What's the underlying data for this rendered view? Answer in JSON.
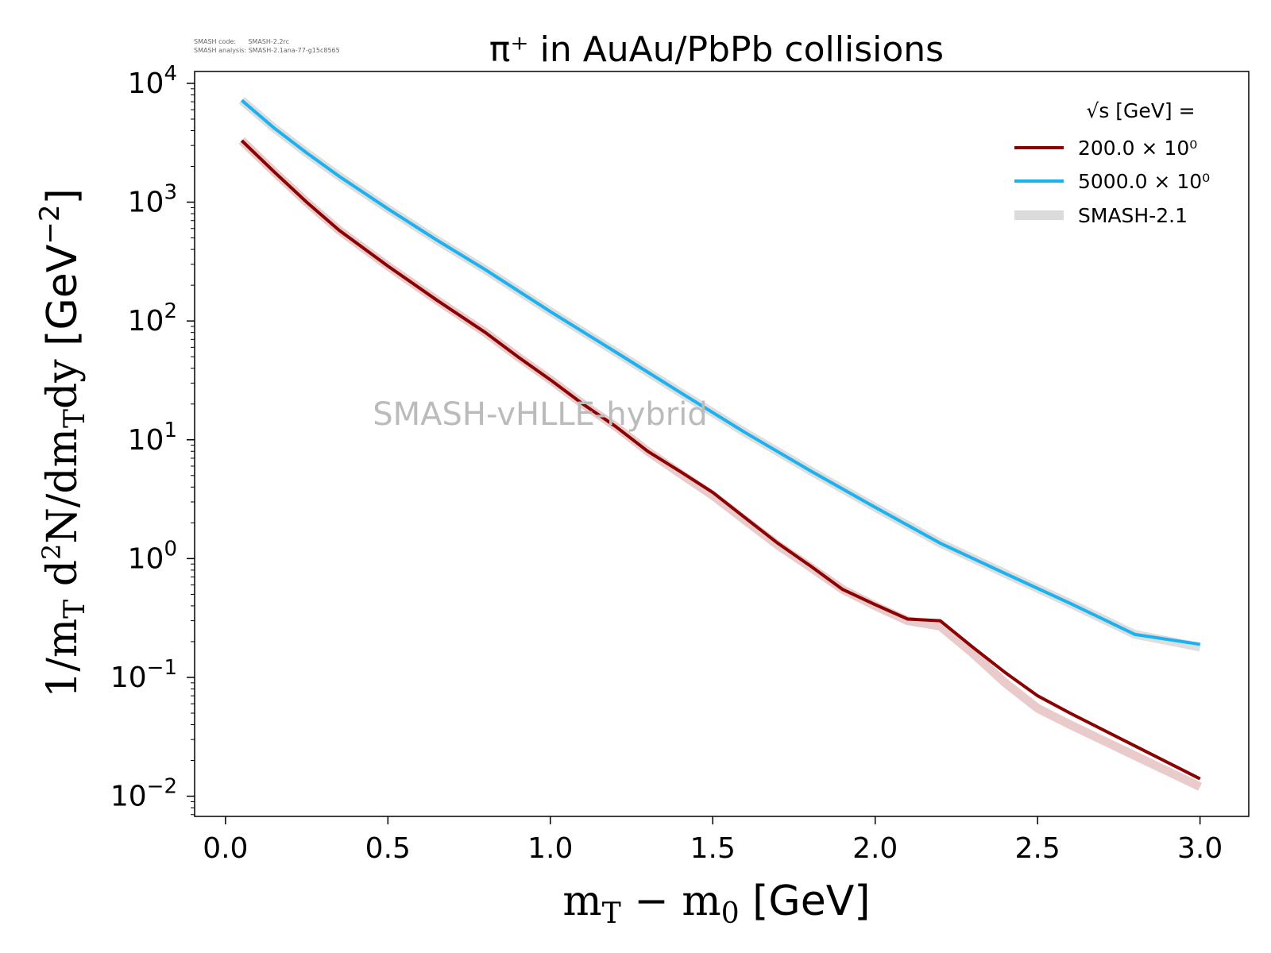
{
  "meta": {
    "code_line": "SMASH code:      SMASH-2.2rc",
    "analysis_line": "SMASH analysis: SMASH-2.1ana-77-g15c8565"
  },
  "chart_data": {
    "type": "line",
    "title": "π⁺ in AuAu/PbPb collisions",
    "xlabel": "m_T − m_0 [GeV]",
    "ylabel": "1/m_T d²N/dm_T dy [GeV⁻²]",
    "xlim": [
      -0.095,
      3.15
    ],
    "ylim_log10": [
      -2.17,
      4.1
    ],
    "yscale": "log",
    "x_ticks": [
      "0.0",
      "0.5",
      "1.0",
      "1.5",
      "2.0",
      "2.5",
      "3.0"
    ],
    "y_ticks": [
      {
        "base": "10",
        "exp": "−2"
      },
      {
        "base": "10",
        "exp": "−1"
      },
      {
        "base": "10",
        "exp": "0"
      },
      {
        "base": "10",
        "exp": "1"
      },
      {
        "base": "10",
        "exp": "2"
      },
      {
        "base": "10",
        "exp": "3"
      },
      {
        "base": "10",
        "exp": "4"
      }
    ],
    "watermark": "SMASH-vHLLE-hybrid",
    "legend": {
      "title": "√s  [GeV] =",
      "placement": "top-right",
      "entries": [
        {
          "label": "200.0 × 10⁰",
          "color": "#8b0000"
        },
        {
          "label": "5000.0 × 10⁰",
          "color": "#1ab2f0"
        },
        {
          "label": "SMASH-2.1",
          "color": "#d3d3d3"
        }
      ]
    },
    "series": [
      {
        "name": "200.0 × 10⁰",
        "color": "#8b0000",
        "x": [
          0.05,
          0.15,
          0.25,
          0.35,
          0.5,
          0.65,
          0.8,
          0.9,
          1.0,
          1.1,
          1.2,
          1.3,
          1.4,
          1.5,
          1.6,
          1.7,
          1.8,
          1.9,
          2.0,
          2.1,
          2.2,
          2.3,
          2.4,
          2.5,
          2.6,
          3.0
        ],
        "y": [
          3300,
          1800,
          1000,
          580,
          290,
          150,
          80,
          50,
          32,
          20,
          13,
          8,
          5.4,
          3.6,
          2.2,
          1.35,
          0.87,
          0.55,
          0.41,
          0.31,
          0.3,
          0.18,
          0.11,
          0.07,
          0.05,
          0.014
        ]
      },
      {
        "name": "5000.0 × 10⁰",
        "color": "#1ab2f0",
        "x": [
          0.05,
          0.15,
          0.25,
          0.35,
          0.5,
          0.65,
          0.8,
          1.0,
          1.2,
          1.4,
          1.6,
          1.8,
          2.0,
          2.2,
          2.4,
          2.6,
          2.8,
          3.0
        ],
        "y": [
          7200,
          4200,
          2600,
          1650,
          880,
          480,
          270,
          120,
          55,
          25,
          11.5,
          5.5,
          2.7,
          1.35,
          0.75,
          0.42,
          0.23,
          0.19
        ]
      },
      {
        "name": "SMASH-2.1",
        "color": "#d3d3d3",
        "band": true,
        "x": [
          0.05,
          0.15,
          0.25,
          0.35,
          0.5,
          0.65,
          0.8,
          1.0,
          1.2,
          1.4,
          1.6,
          1.8,
          2.0,
          2.2,
          2.4,
          2.6,
          2.8,
          3.0
        ],
        "y": [
          7200,
          4200,
          2600,
          1650,
          880,
          480,
          270,
          120,
          55,
          25,
          11.5,
          5.5,
          2.7,
          1.35,
          0.75,
          0.42,
          0.23,
          0.18
        ]
      },
      {
        "name": "SMASH-2.1",
        "color": "#e3b9b9",
        "band": true,
        "x": [
          0.05,
          0.15,
          0.25,
          0.35,
          0.5,
          0.65,
          0.8,
          0.9,
          1.0,
          1.1,
          1.2,
          1.3,
          1.4,
          1.5,
          1.6,
          1.7,
          1.8,
          1.9,
          2.0,
          2.1,
          2.2,
          2.3,
          2.4,
          2.5,
          2.6,
          3.0
        ],
        "y": [
          3300,
          1800,
          1000,
          580,
          290,
          150,
          80,
          50,
          32,
          20,
          13,
          8,
          5.2,
          3.4,
          2.1,
          1.3,
          0.85,
          0.55,
          0.4,
          0.3,
          0.27,
          0.16,
          0.09,
          0.055,
          0.04,
          0.012
        ]
      }
    ]
  }
}
